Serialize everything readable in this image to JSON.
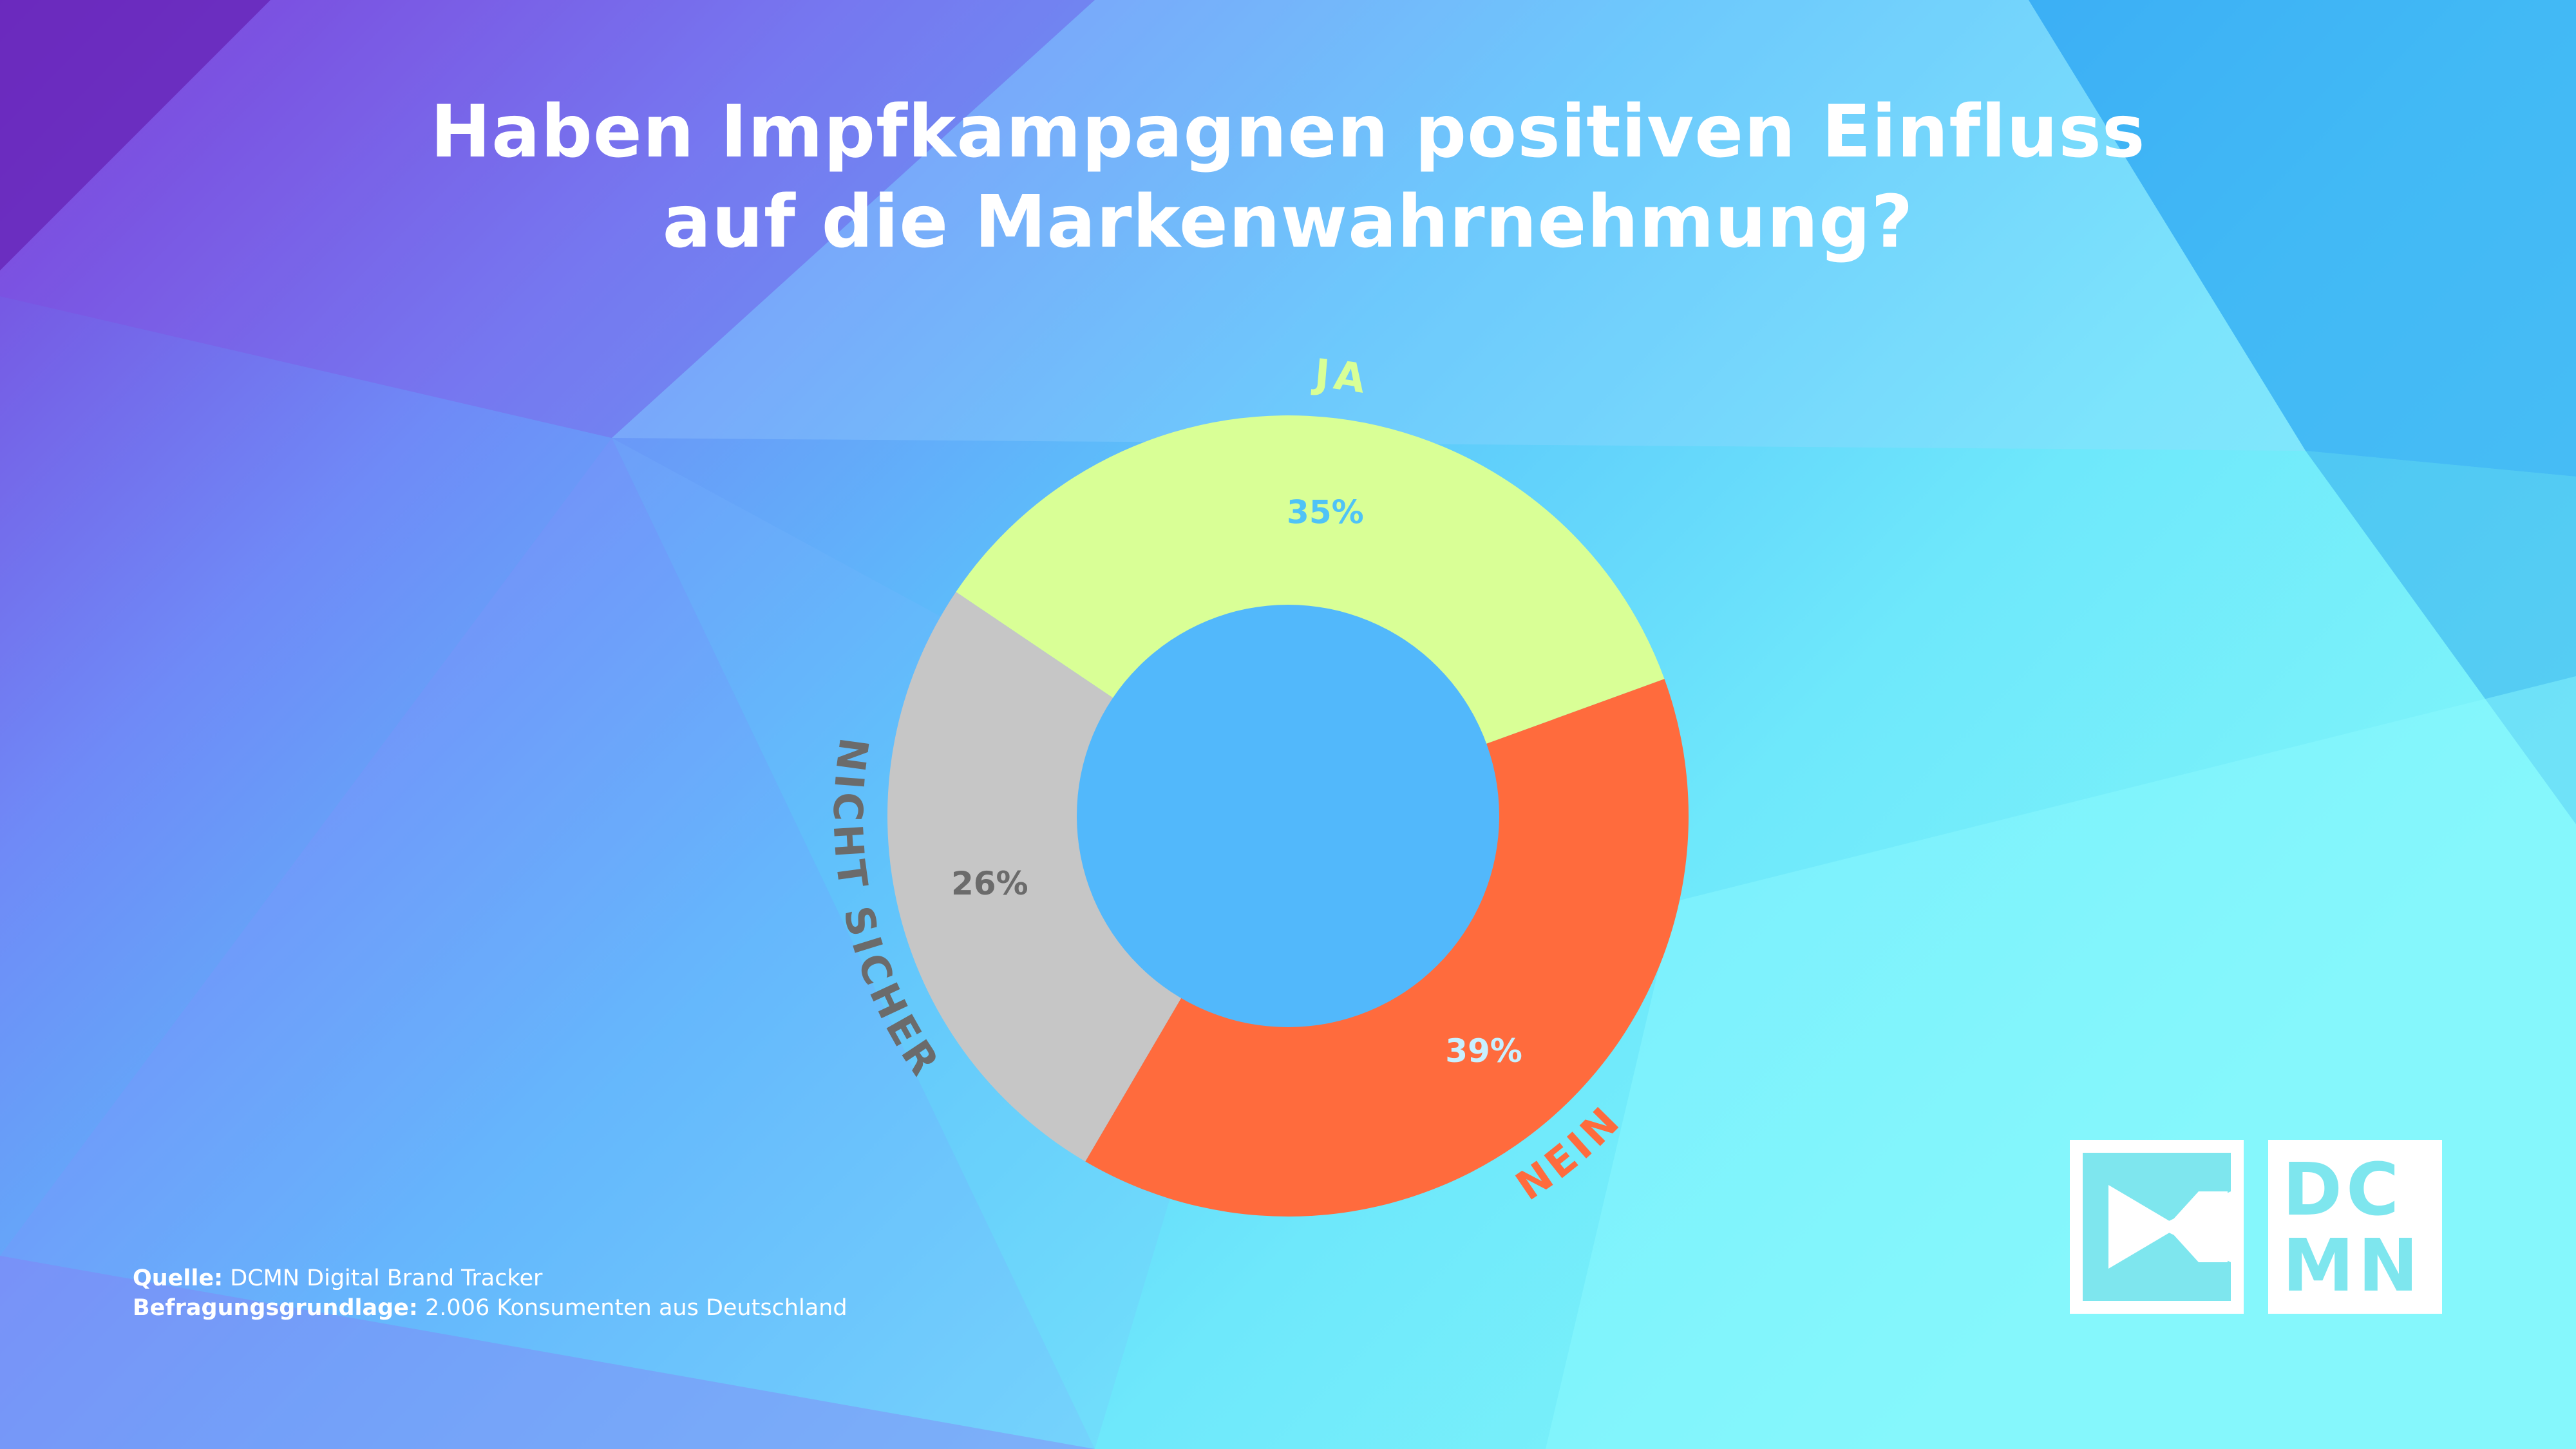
{
  "title": {
    "line1": "Haben Impfkampagnen positiven Einfluss",
    "line2": "auf die Markenwahrnehmung?"
  },
  "chart_data": {
    "type": "pie",
    "title": "Haben Impfkampagnen positiven Einfluss auf die Markenwahrnehmung?",
    "categories": [
      "JA",
      "NEIN",
      "NICHT SICHER"
    ],
    "values": [
      35,
      39,
      26
    ],
    "value_labels": [
      "35%",
      "39%",
      "26%"
    ],
    "colors": [
      "#d9ff96",
      "#ff6b3d",
      "#c6c6c6"
    ],
    "value_label_colors": [
      "#4fc3f7",
      "#c8f0ff",
      "#6b6b6b"
    ],
    "category_label_colors": [
      "#d9ff96",
      "#ff6b3d",
      "#6b6b6b"
    ],
    "donut": true
  },
  "source": {
    "label1": "Quelle:",
    "text1": " DCMN Digital Brand Tracker",
    "label2": "Befragungsgrundlage:",
    "text2": " 2.006 Konsumenten aus Deutschland"
  },
  "logo": {
    "line1": "DC",
    "line2": "MN",
    "color": "#7ee6ee"
  },
  "colors": {
    "background_left": "#7b5ce6",
    "background_right": "#7ff5fa",
    "hole": "#52b8fb"
  }
}
